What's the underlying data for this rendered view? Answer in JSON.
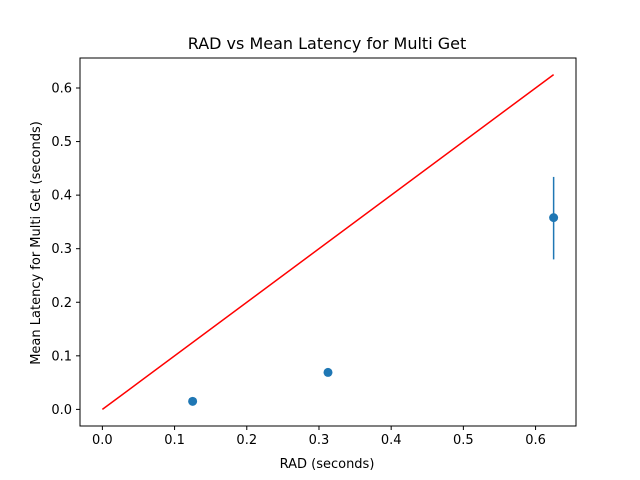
{
  "chart_data": {
    "type": "scatter",
    "title": "RAD vs Mean Latency for Multi Get",
    "xlabel": "RAD (seconds)",
    "ylabel": "Mean Latency for Multi Get (seconds)",
    "xlim": [
      -0.031,
      0.656
    ],
    "ylim": [
      -0.031,
      0.656
    ],
    "xticks": [
      0.0,
      0.1,
      0.2,
      0.3,
      0.4,
      0.5,
      0.6
    ],
    "xtick_labels": [
      "0.0",
      "0.1",
      "0.2",
      "0.3",
      "0.4",
      "0.5",
      "0.6"
    ],
    "yticks": [
      0.0,
      0.1,
      0.2,
      0.3,
      0.4,
      0.5,
      0.6
    ],
    "ytick_labels": [
      "0.0",
      "0.1",
      "0.2",
      "0.3",
      "0.4",
      "0.5",
      "0.6"
    ],
    "grid": false,
    "points": [
      {
        "x": 0.125,
        "y": 0.015,
        "err_low": 0.015,
        "err_high": 0.015
      },
      {
        "x": 0.3125,
        "y": 0.069,
        "err_low": 0.069,
        "err_high": 0.069
      },
      {
        "x": 0.625,
        "y": 0.358,
        "err_low": 0.28,
        "err_high": 0.434
      }
    ],
    "reference_line": {
      "x": [
        0.0,
        0.625
      ],
      "y": [
        0.0,
        0.625
      ],
      "color": "#ff0000"
    },
    "colors": {
      "points": "#1f77b4",
      "line": "#ff0000",
      "axes": "#000000"
    }
  }
}
